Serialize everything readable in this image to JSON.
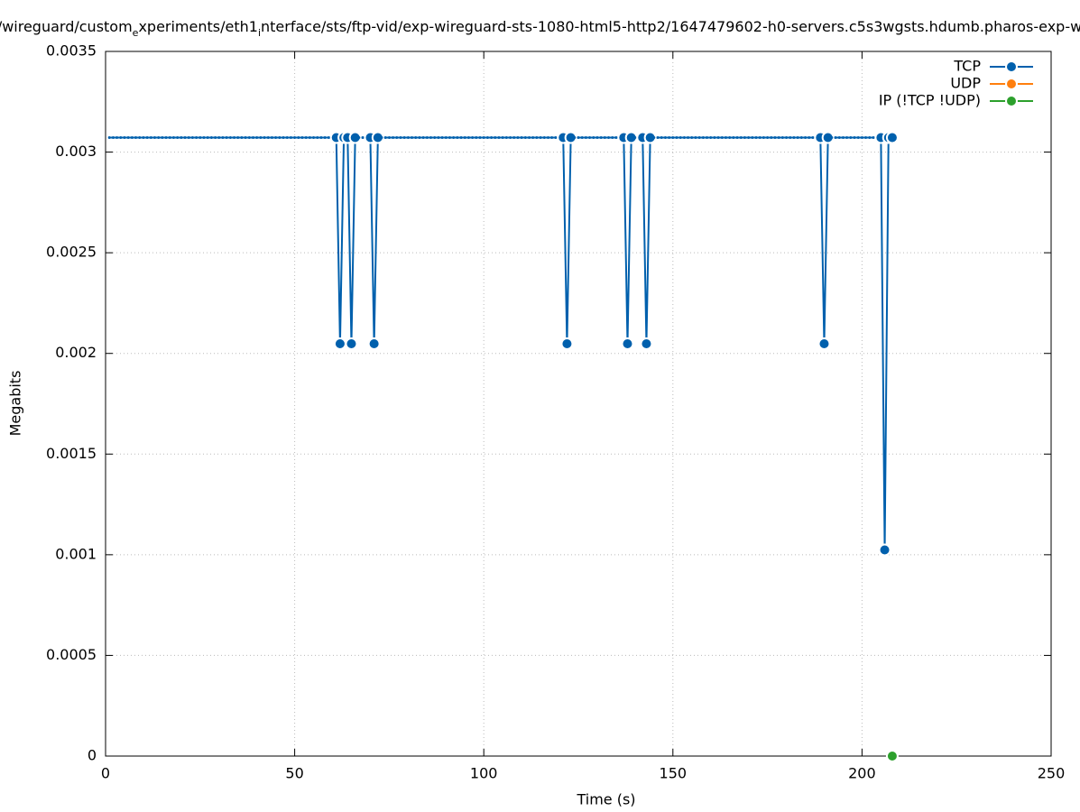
{
  "chart_data": {
    "type": "line",
    "title": [
      "/wireguard/custom",
      "e",
      "xperiments/eth1",
      "i",
      "nterface/sts/ftp-vid/exp-wireguard-sts-1080-html5-http2/1647479602-h0-servers.c5s3wgsts.hdumb.pharos-exp-w"
    ],
    "xlabel": "Time (s)",
    "ylabel": "Megabits",
    "xlim": [
      0,
      250
    ],
    "xticks": [
      0,
      50,
      100,
      150,
      200,
      250
    ],
    "ylim": [
      0,
      0.0035
    ],
    "yticks": [
      0,
      0.0005,
      0.001,
      0.0015,
      0.002,
      0.0025,
      0.003,
      0.0035
    ],
    "grid": true,
    "legend": "top-right",
    "series": [
      {
        "name": "TCP",
        "color": "#0060ad",
        "x": [
          1,
          2,
          3,
          4,
          5,
          6,
          7,
          8,
          9,
          10,
          11,
          12,
          13,
          14,
          15,
          16,
          17,
          18,
          19,
          20,
          21,
          22,
          23,
          24,
          25,
          26,
          27,
          28,
          29,
          30,
          31,
          32,
          33,
          34,
          35,
          36,
          37,
          38,
          39,
          40,
          41,
          42,
          43,
          44,
          45,
          46,
          47,
          48,
          49,
          50,
          51,
          52,
          53,
          54,
          55,
          56,
          57,
          58,
          59,
          60,
          61,
          62,
          63,
          64,
          65,
          66,
          67,
          68,
          69,
          70,
          71,
          72,
          73,
          74,
          75,
          76,
          77,
          78,
          79,
          80,
          81,
          82,
          83,
          84,
          85,
          86,
          87,
          88,
          89,
          90,
          91,
          92,
          93,
          94,
          95,
          96,
          97,
          98,
          99,
          100,
          101,
          102,
          103,
          104,
          105,
          106,
          107,
          108,
          109,
          110,
          111,
          112,
          113,
          114,
          115,
          116,
          117,
          118,
          119,
          120,
          121,
          122,
          123,
          124,
          125,
          126,
          127,
          128,
          129,
          130,
          131,
          132,
          133,
          134,
          135,
          136,
          137,
          138,
          139,
          140,
          141,
          142,
          143,
          144,
          145,
          146,
          147,
          148,
          149,
          150,
          151,
          152,
          153,
          154,
          155,
          156,
          157,
          158,
          159,
          160,
          161,
          162,
          163,
          164,
          165,
          166,
          167,
          168,
          169,
          170,
          171,
          172,
          173,
          174,
          175,
          176,
          177,
          178,
          179,
          180,
          181,
          182,
          183,
          184,
          185,
          186,
          187,
          188,
          189,
          190,
          191,
          192,
          193,
          194,
          195,
          196,
          197,
          198,
          199,
          200,
          201,
          202,
          203,
          204,
          205,
          206,
          207,
          208
        ],
        "values": [
          0.003072,
          0.003072,
          0.003072,
          0.003072,
          0.003072,
          0.003072,
          0.003072,
          0.003072,
          0.003072,
          0.003072,
          0.003072,
          0.003072,
          0.003072,
          0.003072,
          0.003072,
          0.003072,
          0.003072,
          0.003072,
          0.003072,
          0.003072,
          0.003072,
          0.003072,
          0.003072,
          0.003072,
          0.003072,
          0.003072,
          0.003072,
          0.003072,
          0.003072,
          0.003072,
          0.003072,
          0.003072,
          0.003072,
          0.003072,
          0.003072,
          0.003072,
          0.003072,
          0.003072,
          0.003072,
          0.003072,
          0.003072,
          0.003072,
          0.003072,
          0.003072,
          0.003072,
          0.003072,
          0.003072,
          0.003072,
          0.003072,
          0.003072,
          0.003072,
          0.003072,
          0.003072,
          0.003072,
          0.003072,
          0.003072,
          0.003072,
          0.003072,
          0.003072,
          0.003072,
          0.003072,
          0.002048,
          0.003072,
          0.003072,
          0.002048,
          0.003072,
          0.003072,
          0.003072,
          0.003072,
          0.003072,
          0.002048,
          0.003072,
          0.003072,
          0.003072,
          0.003072,
          0.003072,
          0.003072,
          0.003072,
          0.003072,
          0.003072,
          0.003072,
          0.003072,
          0.003072,
          0.003072,
          0.003072,
          0.003072,
          0.003072,
          0.003072,
          0.003072,
          0.003072,
          0.003072,
          0.003072,
          0.003072,
          0.003072,
          0.003072,
          0.003072,
          0.003072,
          0.003072,
          0.003072,
          0.003072,
          0.003072,
          0.003072,
          0.003072,
          0.003072,
          0.003072,
          0.003072,
          0.003072,
          0.003072,
          0.003072,
          0.003072,
          0.003072,
          0.003072,
          0.003072,
          0.003072,
          0.003072,
          0.003072,
          0.003072,
          0.003072,
          0.003072,
          0.003072,
          0.003072,
          0.002048,
          0.003072,
          0.003072,
          0.003072,
          0.003072,
          0.003072,
          0.003072,
          0.003072,
          0.003072,
          0.003072,
          0.003072,
          0.003072,
          0.003072,
          0.003072,
          0.003072,
          0.003072,
          0.002048,
          0.003072,
          0.003072,
          0.003072,
          0.003072,
          0.002048,
          0.003072,
          0.003072,
          0.003072,
          0.003072,
          0.003072,
          0.003072,
          0.003072,
          0.003072,
          0.003072,
          0.003072,
          0.003072,
          0.003072,
          0.003072,
          0.003072,
          0.003072,
          0.003072,
          0.003072,
          0.003072,
          0.003072,
          0.003072,
          0.003072,
          0.003072,
          0.003072,
          0.003072,
          0.003072,
          0.003072,
          0.003072,
          0.003072,
          0.003072,
          0.003072,
          0.003072,
          0.003072,
          0.003072,
          0.003072,
          0.003072,
          0.003072,
          0.003072,
          0.003072,
          0.003072,
          0.003072,
          0.003072,
          0.003072,
          0.003072,
          0.003072,
          0.003072,
          0.003072,
          0.002048,
          0.003072,
          0.003072,
          0.003072,
          0.003072,
          0.003072,
          0.003072,
          0.003072,
          0.003072,
          0.003072,
          0.003072,
          0.003072,
          0.003072,
          0.003072,
          0.003072,
          0.003072,
          0.001024,
          0.003072,
          0.003072
        ]
      },
      {
        "name": "UDP",
        "color": "#ff7f0e",
        "x": [],
        "values": []
      },
      {
        "name": "IP (!TCP  !UDP)",
        "color": "#2ca02c",
        "x": [
          208
        ],
        "values": [
          0
        ]
      }
    ]
  }
}
